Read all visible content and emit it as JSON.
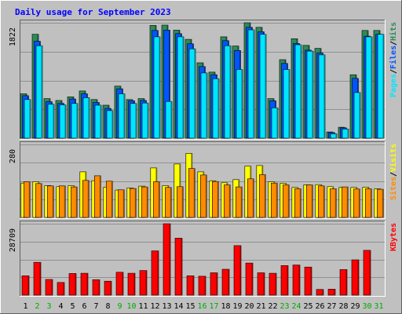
{
  "chart_data": {
    "type": "bar",
    "title": "Daily usage for September 2023",
    "categories": [
      "1",
      "2",
      "3",
      "4",
      "5",
      "6",
      "7",
      "8",
      "9",
      "10",
      "11",
      "12",
      "13",
      "14",
      "15",
      "16",
      "17",
      "18",
      "19",
      "20",
      "21",
      "22",
      "23",
      "24",
      "25",
      "26",
      "27",
      "28",
      "29",
      "30",
      "31"
    ],
    "weekend_days": [
      "2",
      "3",
      "9",
      "10",
      "16",
      "17",
      "23",
      "24",
      "30",
      "31"
    ],
    "panels": [
      {
        "id": "hits",
        "ymax_label": "1822",
        "ymax": 1822,
        "series": [
          {
            "name": "Hits",
            "color": "#2e8b57",
            "values": [
              700,
              1640,
              625,
              595,
              652,
              745,
              610,
              520,
              822,
              610,
              625,
              1780,
              1785,
              1705,
              1560,
              1190,
              1042,
              1600,
              1455,
              1822,
              1750,
              625,
              1240,
              1570,
              1465,
              1418,
              98,
              172,
              1001,
              1701,
              1701
            ]
          },
          {
            "name": "Files",
            "color": "#0055ff",
            "values": [
              670,
              1530,
              575,
              550,
              618,
              700,
              564,
              470,
              780,
              590,
              595,
              1700,
              1705,
              1650,
              1490,
              1130,
              1001,
              1540,
              1385,
              1750,
              1680,
              590,
              1180,
              1495,
              1390,
              1345,
              88,
              162,
              945,
              1610,
              1640
            ]
          },
          {
            "name": "Pages",
            "color": "#00e5ff",
            "values": [
              610,
              1460,
              535,
              525,
              548,
              640,
              520,
              435,
              700,
              548,
              555,
              1600,
              580,
              1600,
              1410,
              1030,
              940,
              1460,
              1085,
              1710,
              1640,
              480,
              1085,
              1475,
              1375,
              1315,
              70,
              145,
              720,
              1600,
              1640
            ]
          }
        ]
      },
      {
        "id": "visits",
        "ymax_label": "280",
        "ymax": 280,
        "series": [
          {
            "name": "Visits",
            "color": "#ffff00",
            "values": [
              132,
              137,
              122,
              118,
              122,
              175,
              141,
              116,
              105,
              113,
              120,
              190,
              122,
              205,
              246,
              175,
              141,
              133,
              145,
              197,
              199,
              137,
              131,
              115,
              125,
              126,
              118,
              115,
              115,
              116,
              110
            ]
          },
          {
            "name": "Sites",
            "color": "#ff8c00",
            "values": [
              137,
              130,
              121,
              121,
              117,
              142,
              160,
              139,
              106,
              111,
              117,
              137,
              115,
              118,
              188,
              163,
              138,
              125,
              117,
              148,
              164,
              132,
              125,
              110,
              125,
              121,
              110,
              117,
              109,
              110,
              108
            ]
          }
        ]
      },
      {
        "id": "kbytes",
        "ymax_label": "28709",
        "ymax": 28709,
        "series": [
          {
            "name": "KBytes",
            "color": "#ff0000",
            "values": [
              7800,
              13200,
              6300,
              5100,
              8700,
              8800,
              6200,
              5600,
              9200,
              8800,
              9900,
              17800,
              28709,
              22900,
              7800,
              7600,
              9000,
              10400,
              19900,
              12900,
              9000,
              8800,
              11900,
              12100,
              11300,
              2300,
              2400,
              10300,
              14200,
              18000,
              0
            ]
          }
        ]
      }
    ],
    "right_labels": [
      {
        "text": "Pages",
        "color": "#00e5ff"
      },
      {
        "text": "Files",
        "color": "#0055ff"
      },
      {
        "text": "Hits",
        "color": "#2e8b57"
      },
      {
        "text": "Sites",
        "color": "#ff8c00"
      },
      {
        "text": "Visits",
        "color": "#ffff00"
      },
      {
        "text": "KBytes",
        "color": "#ff0000"
      }
    ],
    "separator": "/",
    "colors": {
      "background": "#c0c0c0",
      "title": "#0000ff",
      "weekday_label": "#000000",
      "weekend_label": "#00aa00",
      "gridline": "#909090"
    },
    "grid": true
  }
}
